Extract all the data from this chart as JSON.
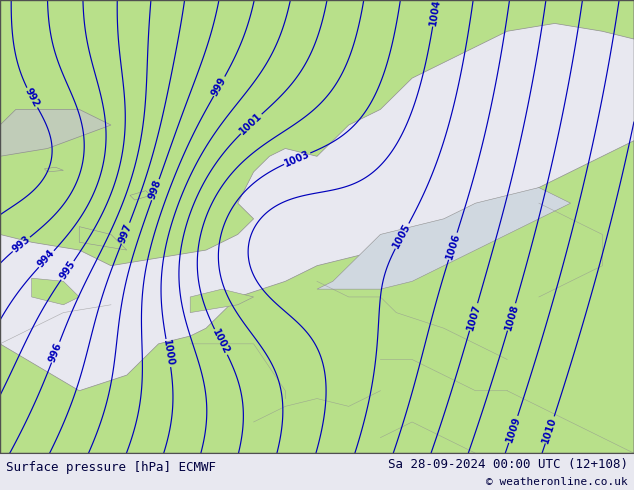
{
  "title_left": "Surface pressure [hPa] ECMWF",
  "title_right": "Sa 28-09-2024 00:00 UTC (12+108)",
  "copyright": "© weatheronline.co.uk",
  "bg_color_land": "#b8e08a",
  "bg_color_sea": "#d0d8e0",
  "isobar_color": "#0000bb",
  "coast_color": "#909090",
  "footer_bg": "#e8e8f0",
  "footer_text_color": "#000040",
  "figsize": [
    6.34,
    4.9
  ],
  "dpi": 100,
  "pressure_min": 984,
  "pressure_max": 1011,
  "label_levels": [
    992,
    993,
    994,
    995,
    996,
    997,
    998,
    999,
    1000,
    1001,
    1002,
    1003,
    1004,
    1005,
    1006,
    1007,
    1008,
    1009,
    1010
  ]
}
